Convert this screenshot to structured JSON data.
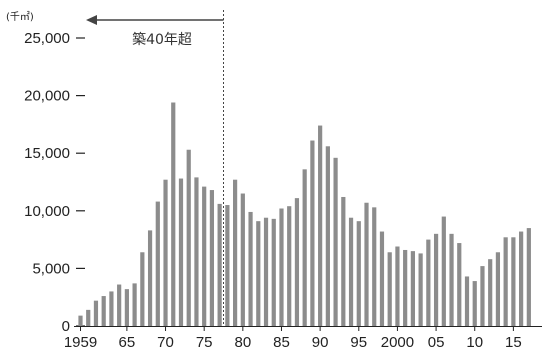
{
  "chart_data": {
    "type": "bar",
    "unit_label": "(千㎡)",
    "ylim": [
      0,
      25000
    ],
    "y_ticks": [
      {
        "value": 0,
        "label": "0"
      },
      {
        "value": 5000,
        "label": "5,000"
      },
      {
        "value": 10000,
        "label": "10,000"
      },
      {
        "value": 15000,
        "label": "15,000"
      },
      {
        "value": 20000,
        "label": "20,000"
      },
      {
        "value": 25000,
        "label": "25,000"
      }
    ],
    "x_ticks": [
      {
        "year": 1959,
        "label": "1959"
      },
      {
        "year": 1965,
        "label": "65"
      },
      {
        "year": 1970,
        "label": "70"
      },
      {
        "year": 1975,
        "label": "75"
      },
      {
        "year": 1980,
        "label": "80"
      },
      {
        "year": 1985,
        "label": "85"
      },
      {
        "year": 1990,
        "label": "90"
      },
      {
        "year": 1995,
        "label": "95"
      },
      {
        "year": 2000,
        "label": "2000"
      },
      {
        "year": 2005,
        "label": "05"
      },
      {
        "year": 2010,
        "label": "10"
      },
      {
        "year": 2015,
        "label": "15"
      }
    ],
    "categories": [
      1959,
      1960,
      1961,
      1962,
      1963,
      1964,
      1965,
      1966,
      1967,
      1968,
      1969,
      1970,
      1971,
      1972,
      1973,
      1974,
      1975,
      1976,
      1977,
      1978,
      1979,
      1980,
      1981,
      1982,
      1983,
      1984,
      1985,
      1986,
      1987,
      1988,
      1989,
      1990,
      1991,
      1992,
      1993,
      1994,
      1995,
      1996,
      1997,
      1998,
      1999,
      2000,
      2001,
      2002,
      2003,
      2004,
      2005,
      2006,
      2007,
      2008,
      2009,
      2010,
      2011,
      2012,
      2013,
      2014,
      2015,
      2016,
      2017
    ],
    "values": [
      900,
      1400,
      2200,
      2600,
      3000,
      3600,
      3200,
      3700,
      6400,
      8300,
      10800,
      12700,
      19400,
      12800,
      15300,
      12900,
      12100,
      11800,
      10600,
      10500,
      12700,
      11500,
      9900,
      9100,
      9400,
      9300,
      10200,
      10400,
      11100,
      13600,
      16100,
      17400,
      15600,
      14600,
      11200,
      9400,
      9100,
      10700,
      10300,
      8200,
      6400,
      6900,
      6600,
      6500,
      6300,
      7500,
      8000,
      9500,
      8000,
      7200,
      4300,
      3900,
      5200,
      5800,
      6400,
      7700,
      7700,
      8200,
      8500
    ],
    "annotation": {
      "text": "築40年超",
      "boundary_year": 1977.5
    }
  }
}
